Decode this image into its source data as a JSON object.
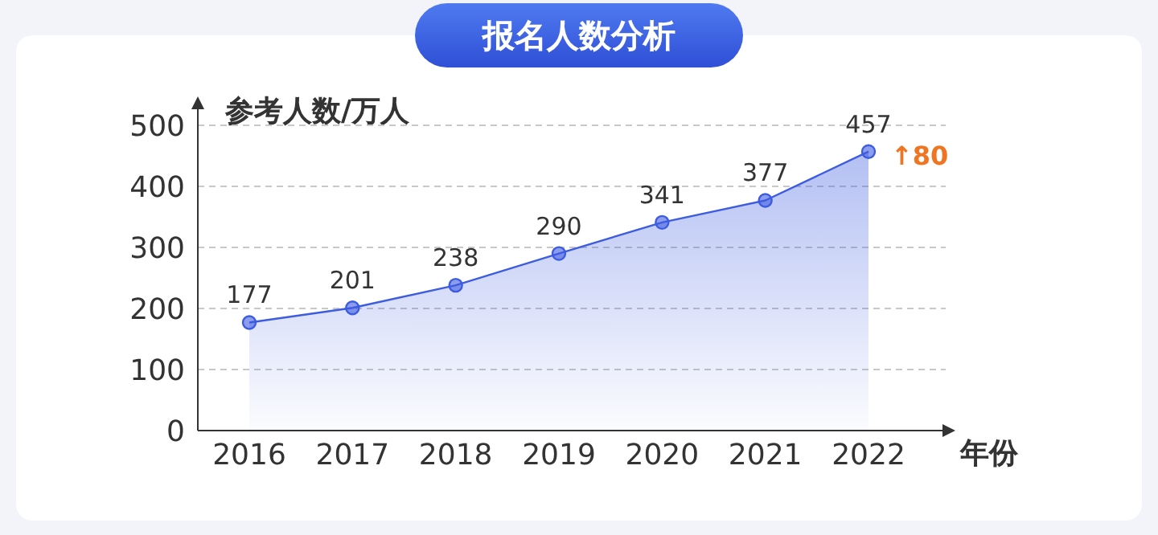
{
  "chart_data": {
    "type": "area",
    "title": "报名人数分析",
    "ylabel": "参考人数/万人",
    "xlabel": "年份",
    "categories": [
      "2016",
      "2017",
      "2018",
      "2019",
      "2020",
      "2021",
      "2022"
    ],
    "series": [
      {
        "color": "#3d5ce0",
        "values": [
          177,
          201,
          238,
          290,
          341,
          377,
          457
        ]
      }
    ],
    "ylim": [
      0,
      500
    ],
    "yticks": [
      0,
      100,
      200,
      300,
      400,
      500
    ],
    "grid": "y",
    "marker": "circle",
    "data_labels": true,
    "annotations": [
      {
        "text": "↑80",
        "x": "2022",
        "y": 457
      }
    ]
  }
}
